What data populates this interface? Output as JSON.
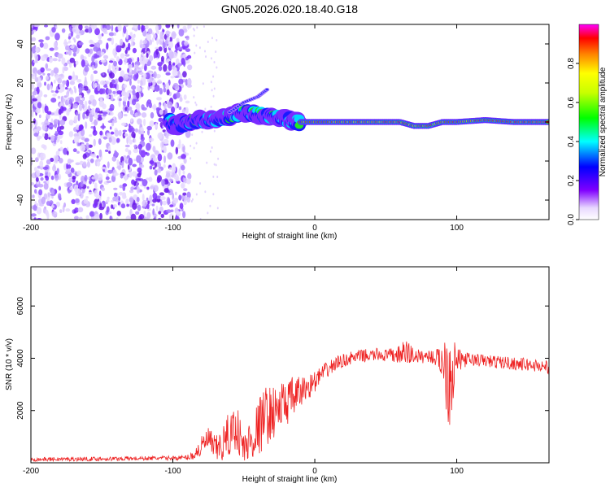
{
  "figure_title": "GN05.2026.020.18.40.G18",
  "colors": {
    "snr_line": "#ee2222",
    "axis": "#000000",
    "background": "#ffffff"
  },
  "chart_data": [
    {
      "type": "heatmap",
      "title": "GN05.2026.020.18.40.G18",
      "xlabel": "Height of straight line (km)",
      "ylabel": "Frequency (Hz)",
      "xlim": [
        -200,
        165
      ],
      "ylim": [
        -50,
        50
      ],
      "x_ticks": [
        "-200",
        "-100",
        "0",
        "100"
      ],
      "y_ticks": [
        "-40",
        "-20",
        "0",
        "20",
        "40"
      ],
      "x_tick_values": [
        -200,
        -100,
        0,
        100
      ],
      "y_tick_values": [
        -40,
        -20,
        0,
        20,
        40
      ],
      "colorbar": {
        "label": "Normalized spectral amplitude",
        "range": [
          0,
          1
        ],
        "ticks": [
          "0.0",
          "0.2",
          "0.4",
          "0.6",
          "0.8"
        ],
        "tick_values": [
          0.0,
          0.2,
          0.4,
          0.6,
          0.8
        ]
      },
      "ridge": {
        "description_points_km_hz": [
          [
            -100,
            -2
          ],
          [
            -90,
            0
          ],
          [
            -80,
            1
          ],
          [
            -70,
            1
          ],
          [
            -60,
            3
          ],
          [
            -50,
            5
          ],
          [
            -40,
            4
          ],
          [
            -30,
            3
          ],
          [
            -20,
            1
          ],
          [
            -10,
            0
          ],
          [
            0,
            0
          ],
          [
            20,
            0
          ],
          [
            40,
            0
          ],
          [
            60,
            0
          ],
          [
            70,
            -2
          ],
          [
            80,
            -2
          ],
          [
            90,
            0
          ],
          [
            100,
            0
          ],
          [
            120,
            1
          ],
          [
            140,
            0
          ],
          [
            165,
            0
          ]
        ],
        "secondary_branch_km_hz": [
          [
            -60,
            5
          ],
          [
            -50,
            10
          ],
          [
            -40,
            13
          ],
          [
            -33,
            17
          ]
        ]
      }
    },
    {
      "type": "line",
      "xlabel": "Height of straight line (km)",
      "ylabel": "SNR (10 * v/v)",
      "xlim": [
        -200,
        165
      ],
      "ylim": [
        0,
        7500
      ],
      "x_ticks": [
        "-200",
        "-100",
        "0",
        "100"
      ],
      "y_ticks": [
        "2000",
        "4000",
        "6000"
      ],
      "x_tick_values": [
        -200,
        -100,
        0,
        100
      ],
      "y_tick_values": [
        2000,
        4000,
        6000
      ],
      "series": [
        {
          "name": "SNR",
          "x": [
            -200,
            -150,
            -100,
            -90,
            -85,
            -80,
            -75,
            -70,
            -65,
            -60,
            -55,
            -50,
            -45,
            -40,
            -35,
            -30,
            -25,
            -20,
            -15,
            -10,
            -5,
            0,
            5,
            10,
            15,
            20,
            25,
            30,
            35,
            40,
            45,
            50,
            55,
            60,
            65,
            70,
            75,
            80,
            85,
            90,
            95,
            100,
            105,
            110,
            120,
            130,
            140,
            150,
            160,
            165
          ],
          "values": [
            130,
            150,
            180,
            200,
            300,
            600,
            900,
            500,
            700,
            1100,
            1400,
            500,
            900,
            1300,
            1800,
            1900,
            2100,
            2300,
            2500,
            2700,
            2900,
            3100,
            3400,
            3600,
            3800,
            3900,
            4000,
            4050,
            4100,
            4100,
            4150,
            4100,
            4100,
            4150,
            4200,
            4100,
            4050,
            4100,
            4000,
            3900,
            3500,
            3900,
            3950,
            3950,
            3900,
            3850,
            3800,
            3750,
            3700,
            3650
          ],
          "noise_amplitude": [
            80,
            80,
            80,
            100,
            200,
            400,
            500,
            500,
            700,
            900,
            900,
            700,
            900,
            1100,
            1200,
            1000,
            1000,
            900,
            800,
            600,
            500,
            400,
            350,
            300,
            300,
            250,
            250,
            250,
            250,
            250,
            250,
            250,
            300,
            350,
            600,
            300,
            250,
            250,
            300,
            700,
            2600,
            500,
            300,
            250,
            250,
            250,
            250,
            250,
            250,
            250
          ]
        }
      ]
    }
  ]
}
